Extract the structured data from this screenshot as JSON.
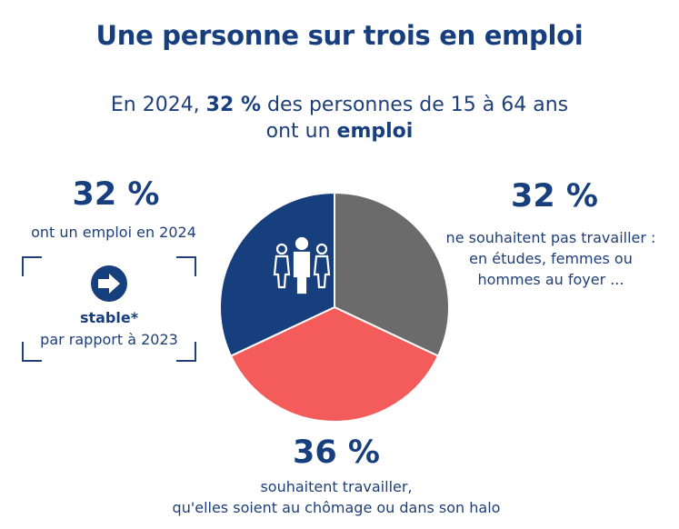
{
  "title": "Une personne sur trois en emploi",
  "subtitle": {
    "prefix": "En 2024, ",
    "highlight": "32 %",
    "middle": " des personnes de 15 à 64 ans",
    "line2_prefix": "ont un ",
    "line2_highlight": "emploi"
  },
  "left_stat": {
    "value": "32 %",
    "description": "ont un emploi en 2024",
    "trend_label": "stable*",
    "trend_desc": "par rapport à 2023",
    "trend_icon": "arrow-right-icon"
  },
  "right_stat": {
    "value": "32 %",
    "description_lines": [
      "ne souhaitent pas travailler :",
      "en études, femmes ou",
      "hommes au foyer ..."
    ]
  },
  "bottom_stat": {
    "value": "36 %",
    "description_lines": [
      "souhaitent travailler,",
      "qu'elles soient au chômage ou dans son halo"
    ]
  },
  "chart_data": {
    "type": "pie",
    "slices": [
      {
        "label": "ont un emploi en 2024",
        "value": 32,
        "color": "#173f7e"
      },
      {
        "label": "ne souhaitent pas travailler",
        "value": 32,
        "color": "#6b6b6b"
      },
      {
        "label": "souhaitent travailler",
        "value": 36,
        "color": "#f45b5b"
      }
    ],
    "icon": "people-icon"
  },
  "colors": {
    "navy": "#173f7e",
    "grey": "#6b6b6b",
    "coral": "#f45b5b"
  }
}
